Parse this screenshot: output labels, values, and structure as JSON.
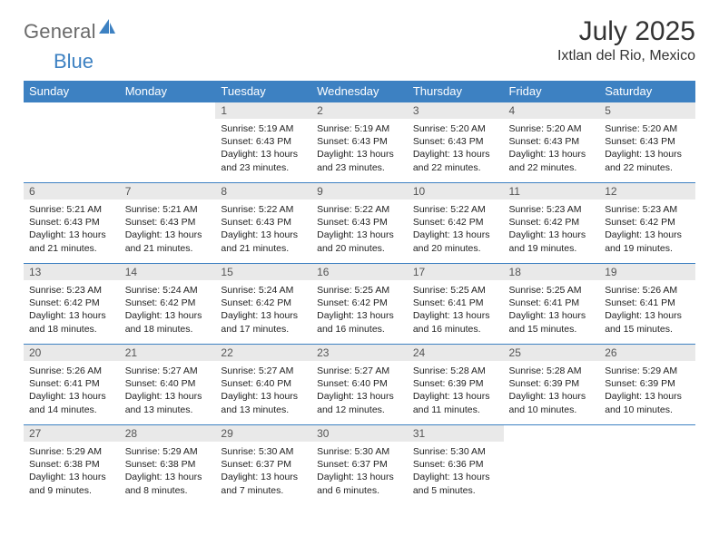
{
  "logo": {
    "word1": "General",
    "word2": "Blue"
  },
  "header": {
    "title": "July 2025",
    "location": "Ixtlan del Rio, Mexico"
  },
  "colors": {
    "accent": "#3d81c2",
    "daynum_bg": "#e9e9e9",
    "text": "#222222",
    "muted": "#6b6b6b"
  },
  "dayNames": [
    "Sunday",
    "Monday",
    "Tuesday",
    "Wednesday",
    "Thursday",
    "Friday",
    "Saturday"
  ],
  "calendar": {
    "startWeekday": 2,
    "numDays": 31
  },
  "days": {
    "1": {
      "sunrise": "5:19 AM",
      "sunset": "6:43 PM",
      "daylight": "13 hours and 23 minutes."
    },
    "2": {
      "sunrise": "5:19 AM",
      "sunset": "6:43 PM",
      "daylight": "13 hours and 23 minutes."
    },
    "3": {
      "sunrise": "5:20 AM",
      "sunset": "6:43 PM",
      "daylight": "13 hours and 22 minutes."
    },
    "4": {
      "sunrise": "5:20 AM",
      "sunset": "6:43 PM",
      "daylight": "13 hours and 22 minutes."
    },
    "5": {
      "sunrise": "5:20 AM",
      "sunset": "6:43 PM",
      "daylight": "13 hours and 22 minutes."
    },
    "6": {
      "sunrise": "5:21 AM",
      "sunset": "6:43 PM",
      "daylight": "13 hours and 21 minutes."
    },
    "7": {
      "sunrise": "5:21 AM",
      "sunset": "6:43 PM",
      "daylight": "13 hours and 21 minutes."
    },
    "8": {
      "sunrise": "5:22 AM",
      "sunset": "6:43 PM",
      "daylight": "13 hours and 21 minutes."
    },
    "9": {
      "sunrise": "5:22 AM",
      "sunset": "6:43 PM",
      "daylight": "13 hours and 20 minutes."
    },
    "10": {
      "sunrise": "5:22 AM",
      "sunset": "6:42 PM",
      "daylight": "13 hours and 20 minutes."
    },
    "11": {
      "sunrise": "5:23 AM",
      "sunset": "6:42 PM",
      "daylight": "13 hours and 19 minutes."
    },
    "12": {
      "sunrise": "5:23 AM",
      "sunset": "6:42 PM",
      "daylight": "13 hours and 19 minutes."
    },
    "13": {
      "sunrise": "5:23 AM",
      "sunset": "6:42 PM",
      "daylight": "13 hours and 18 minutes."
    },
    "14": {
      "sunrise": "5:24 AM",
      "sunset": "6:42 PM",
      "daylight": "13 hours and 18 minutes."
    },
    "15": {
      "sunrise": "5:24 AM",
      "sunset": "6:42 PM",
      "daylight": "13 hours and 17 minutes."
    },
    "16": {
      "sunrise": "5:25 AM",
      "sunset": "6:42 PM",
      "daylight": "13 hours and 16 minutes."
    },
    "17": {
      "sunrise": "5:25 AM",
      "sunset": "6:41 PM",
      "daylight": "13 hours and 16 minutes."
    },
    "18": {
      "sunrise": "5:25 AM",
      "sunset": "6:41 PM",
      "daylight": "13 hours and 15 minutes."
    },
    "19": {
      "sunrise": "5:26 AM",
      "sunset": "6:41 PM",
      "daylight": "13 hours and 15 minutes."
    },
    "20": {
      "sunrise": "5:26 AM",
      "sunset": "6:41 PM",
      "daylight": "13 hours and 14 minutes."
    },
    "21": {
      "sunrise": "5:27 AM",
      "sunset": "6:40 PM",
      "daylight": "13 hours and 13 minutes."
    },
    "22": {
      "sunrise": "5:27 AM",
      "sunset": "6:40 PM",
      "daylight": "13 hours and 13 minutes."
    },
    "23": {
      "sunrise": "5:27 AM",
      "sunset": "6:40 PM",
      "daylight": "13 hours and 12 minutes."
    },
    "24": {
      "sunrise": "5:28 AM",
      "sunset": "6:39 PM",
      "daylight": "13 hours and 11 minutes."
    },
    "25": {
      "sunrise": "5:28 AM",
      "sunset": "6:39 PM",
      "daylight": "13 hours and 10 minutes."
    },
    "26": {
      "sunrise": "5:29 AM",
      "sunset": "6:39 PM",
      "daylight": "13 hours and 10 minutes."
    },
    "27": {
      "sunrise": "5:29 AM",
      "sunset": "6:38 PM",
      "daylight": "13 hours and 9 minutes."
    },
    "28": {
      "sunrise": "5:29 AM",
      "sunset": "6:38 PM",
      "daylight": "13 hours and 8 minutes."
    },
    "29": {
      "sunrise": "5:30 AM",
      "sunset": "6:37 PM",
      "daylight": "13 hours and 7 minutes."
    },
    "30": {
      "sunrise": "5:30 AM",
      "sunset": "6:37 PM",
      "daylight": "13 hours and 6 minutes."
    },
    "31": {
      "sunrise": "5:30 AM",
      "sunset": "6:36 PM",
      "daylight": "13 hours and 5 minutes."
    }
  },
  "labels": {
    "sunrise": "Sunrise: ",
    "sunset": "Sunset: ",
    "daylight": "Daylight: "
  }
}
